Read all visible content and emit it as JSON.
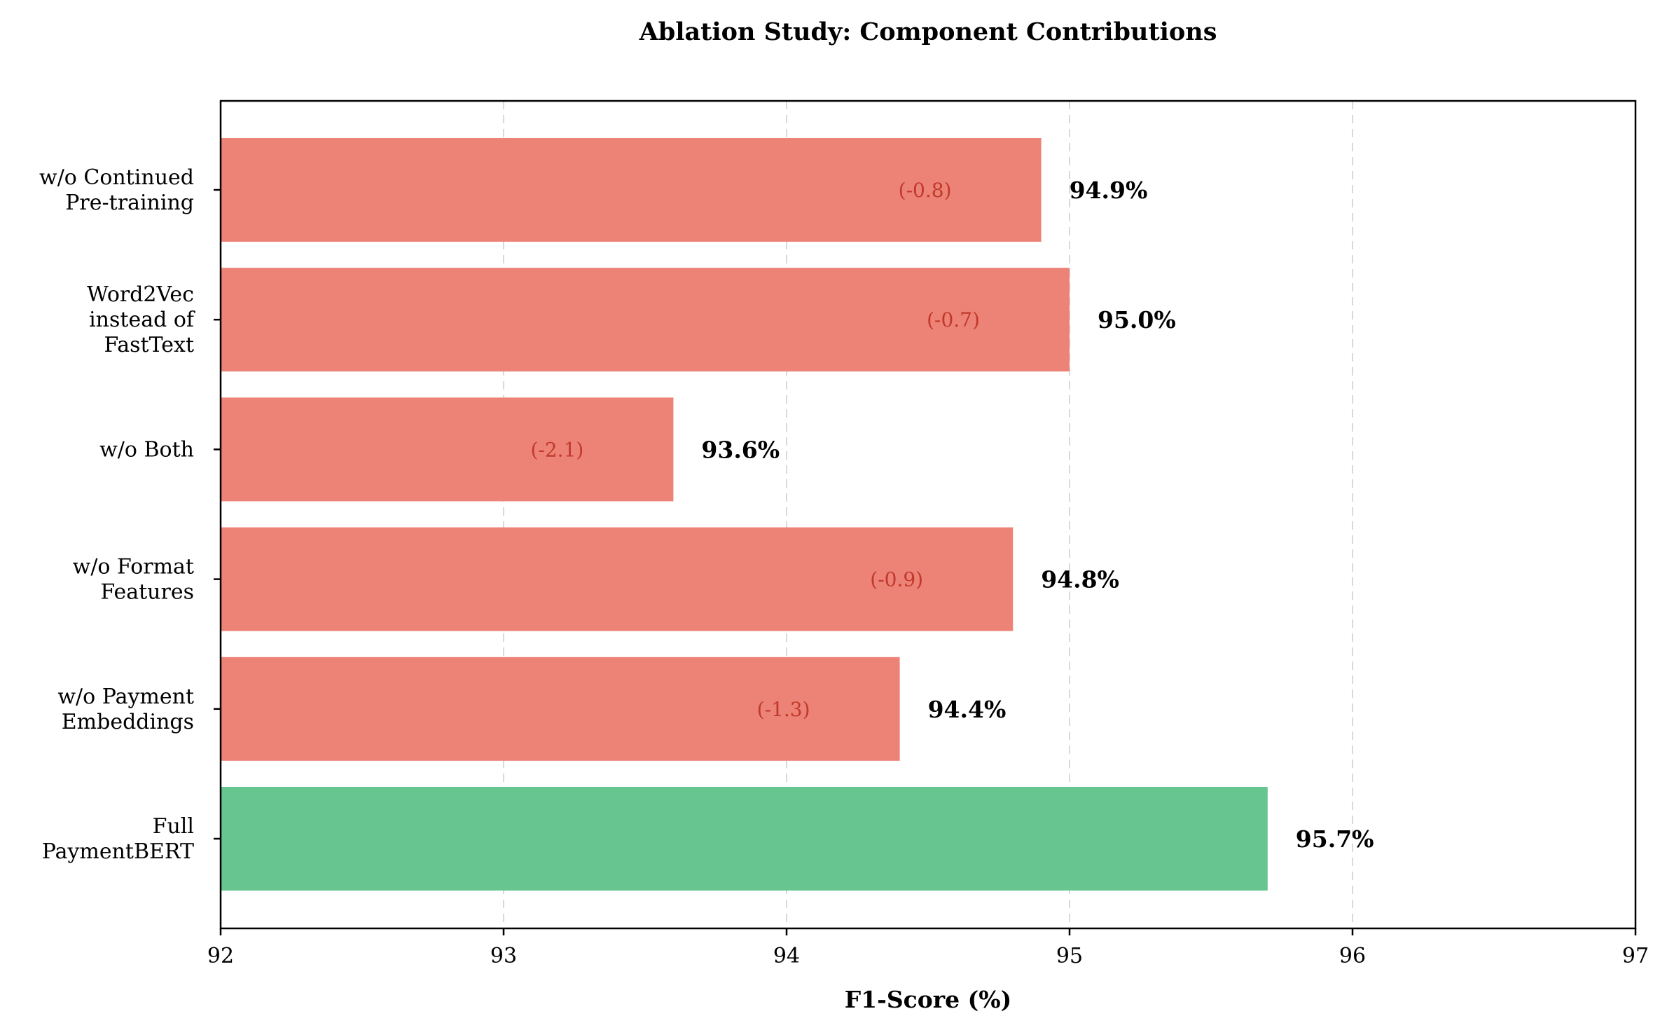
{
  "chart_data": {
    "type": "bar",
    "orientation": "horizontal",
    "title": "Ablation Study: Component Contributions",
    "xlabel": "F1-Score (%)",
    "ylabel": "",
    "xlim": [
      92,
      97
    ],
    "xticks": [
      92,
      93,
      94,
      95,
      96,
      97
    ],
    "grid": "x-dashed",
    "categories": [
      "w/o Continued\nPre-training",
      "Word2Vec\ninstead of\nFastText",
      "w/o Both",
      "w/o Format\nFeatures",
      "w/o Payment\nEmbeddings",
      "Full\nPaymentBERT"
    ],
    "values": [
      94.9,
      95.0,
      93.6,
      94.8,
      94.4,
      95.7
    ],
    "value_labels": [
      "94.9%",
      "95.0%",
      "93.6%",
      "94.8%",
      "94.4%",
      "95.7%"
    ],
    "delta_labels": [
      "(-0.8)",
      "(-0.7)",
      "(-2.1)",
      "(-0.9)",
      "(-1.3)",
      ""
    ],
    "colors": [
      "#ed8276",
      "#ed8276",
      "#ed8276",
      "#ed8276",
      "#ed8276",
      "#67c58f"
    ],
    "delta_color": "#c0392b"
  }
}
